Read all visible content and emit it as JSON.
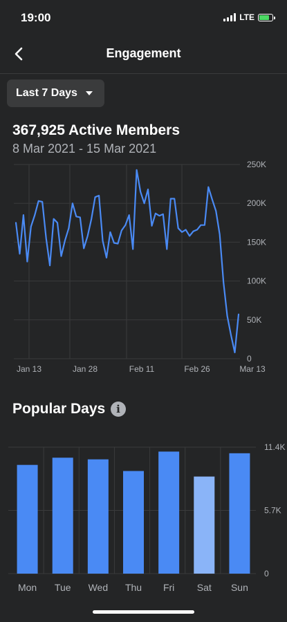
{
  "status_bar": {
    "time": "19:00",
    "network": "LTE"
  },
  "header": {
    "title": "Engagement",
    "back_icon": "chevron-left-icon"
  },
  "range_selector": {
    "label": "Last 7 Days",
    "icon": "caret-down-icon"
  },
  "members": {
    "headline": "367,925 Active Members",
    "date_range": "8 Mar 2021 - 15 Mar 2021"
  },
  "popular_days": {
    "title": "Popular Days",
    "info_icon": "info-icon"
  },
  "colors": {
    "background": "#242526",
    "line": "#4a8af4",
    "bar": "#4a8af4",
    "bar_highlight": "#8ab4f8",
    "grid": "#3a3b3c",
    "axis_text": "#b0b3b8"
  },
  "chart_data": [
    {
      "type": "line",
      "x_tick_labels": [
        "Jan 13",
        "Jan 28",
        "Feb 11",
        "Feb 26",
        "Mar 13"
      ],
      "y_tick_labels": [
        "250K",
        "200K",
        "150K",
        "100K",
        "50K",
        "0"
      ],
      "ylim": [
        0,
        250000
      ],
      "grid": true,
      "values": [
        175000,
        135000,
        185000,
        125000,
        170000,
        185000,
        203000,
        202000,
        155000,
        120000,
        180000,
        175000,
        132000,
        152000,
        168000,
        200000,
        183000,
        182000,
        142000,
        158000,
        180000,
        208000,
        210000,
        152000,
        130000,
        163000,
        149000,
        148000,
        165000,
        172000,
        185000,
        141000,
        243000,
        215000,
        200000,
        218000,
        171000,
        187000,
        184000,
        186000,
        141000,
        206000,
        206000,
        168000,
        163000,
        166000,
        158000,
        164000,
        166000,
        172000,
        172000,
        221000,
        205000,
        190000,
        160000,
        98000,
        55000,
        30000,
        8000,
        57000
      ]
    },
    {
      "type": "bar",
      "categories": [
        "Mon",
        "Tue",
        "Wed",
        "Thu",
        "Fri",
        "Sat",
        "Sun"
      ],
      "values": [
        9800,
        10450,
        10300,
        9250,
        11000,
        8750,
        10850
      ],
      "highlight_index": 5,
      "y_tick_labels": [
        "11.4K",
        "5.7K",
        "0"
      ],
      "ylim": [
        0,
        11400
      ],
      "grid": true
    }
  ]
}
